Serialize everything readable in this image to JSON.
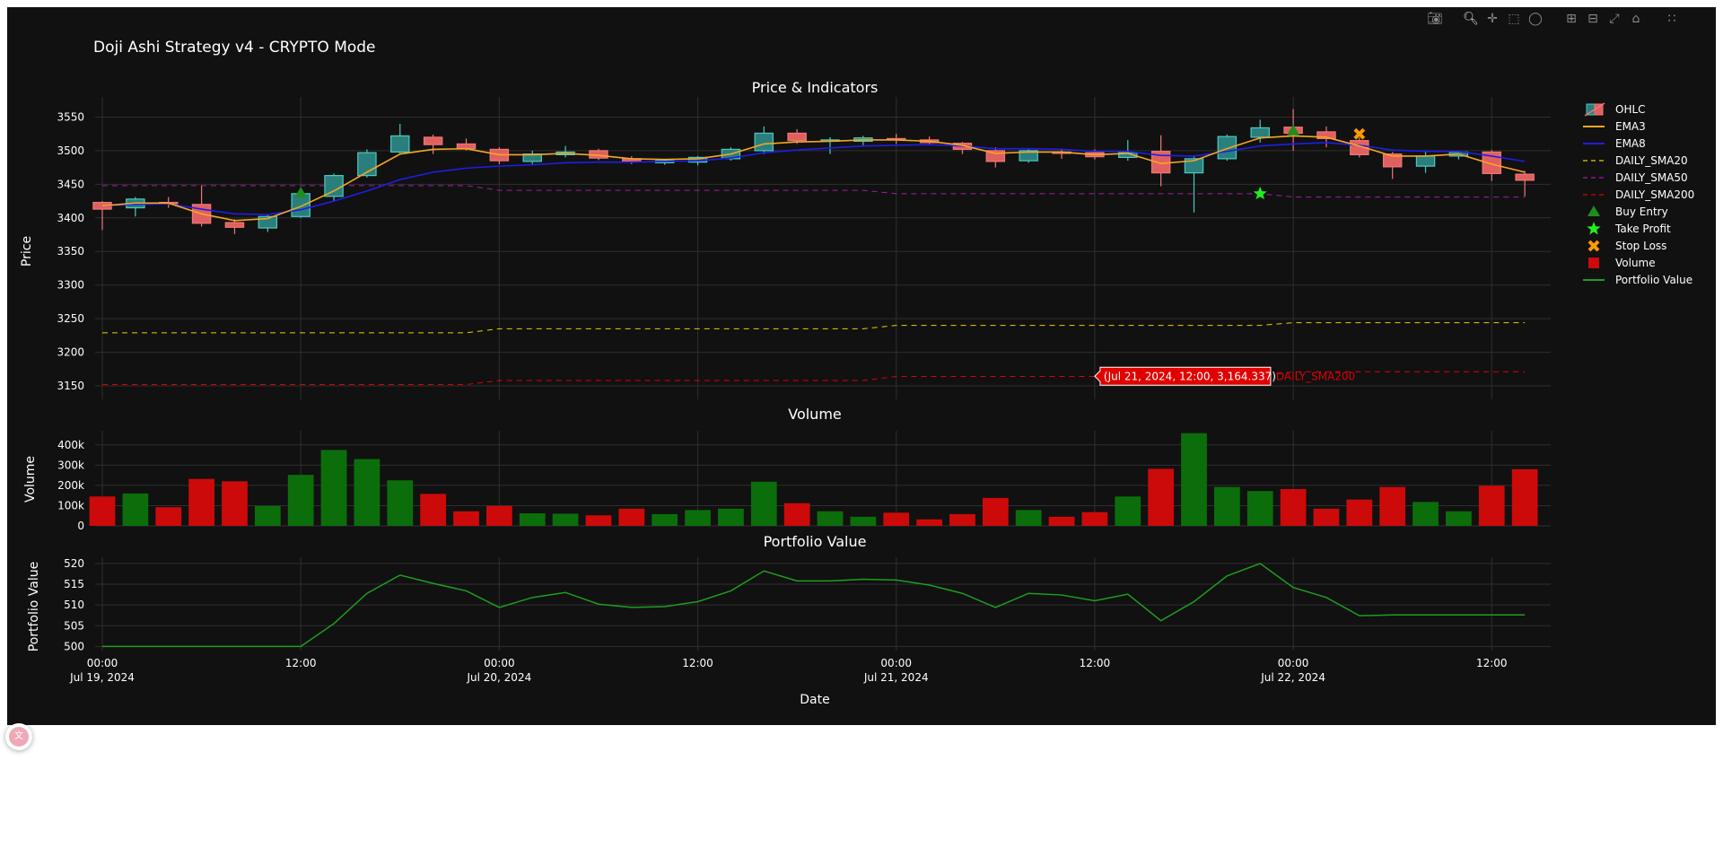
{
  "title": "Doji Ashi Strategy v4 - CRYPTO Mode",
  "modebar": {
    "icons": [
      "camera-icon",
      "zoom-icon",
      "pan-icon",
      "box-select-icon",
      "lasso-icon",
      "zoom-in-icon",
      "zoom-out-icon",
      "autoscale-icon",
      "home-icon",
      "plotly-logo-icon"
    ]
  },
  "colors": {
    "background": "#111111",
    "grid": "#2f2f2f",
    "text": "#ffffff",
    "up_fill": "#2a7f7c",
    "up_line": "#4cc9c0",
    "down_fill": "#e06060",
    "down_line": "#f07777",
    "ema3": "#f5a623",
    "ema8": "#1e1ee8",
    "sma20": "#e8d000",
    "sma50": "#a020a0",
    "sma200": "#e00000",
    "vol_up": "#0b6e0b",
    "vol_down": "#cc0a0a",
    "portfolio": "#1e9e1e",
    "buy": "#1e8e1e",
    "tp": "#22ee22",
    "sl": "#ff9900"
  },
  "chart_data": [
    {
      "type": "candlestick",
      "title": "Price & Indicators",
      "ylabel": "Price",
      "ylim": [
        3130,
        3580
      ],
      "yticks": [
        3150,
        3200,
        3250,
        3300,
        3350,
        3400,
        3450,
        3500,
        3550
      ],
      "xlabel": "Date",
      "x_start": "Jul 19, 2024 00:00",
      "bar_interval_hours": 2,
      "x_tick_labels": [
        {
          "hour": 0,
          "line1": "00:00",
          "line2": "Jul 19, 2024"
        },
        {
          "hour": 12,
          "line1": "12:00",
          "line2": ""
        },
        {
          "hour": 24,
          "line1": "00:00",
          "line2": "Jul 20, 2024"
        },
        {
          "hour": 36,
          "line1": "12:00",
          "line2": ""
        },
        {
          "hour": 48,
          "line1": "00:00",
          "line2": "Jul 21, 2024"
        },
        {
          "hour": 60,
          "line1": "12:00",
          "line2": ""
        },
        {
          "hour": 72,
          "line1": "00:00",
          "line2": "Jul 22, 2024"
        },
        {
          "hour": 84,
          "line1": "12:00",
          "line2": ""
        }
      ],
      "ohlc": [
        [
          3423,
          3425,
          3382,
          3413
        ],
        [
          3415,
          3431,
          3402,
          3428
        ],
        [
          3423,
          3431,
          3415,
          3421
        ],
        [
          3420,
          3448,
          3387,
          3392
        ],
        [
          3393,
          3398,
          3376,
          3386
        ],
        [
          3385,
          3404,
          3379,
          3402
        ],
        [
          3402,
          3440,
          3400,
          3436
        ],
        [
          3432,
          3466,
          3425,
          3463
        ],
        [
          3463,
          3502,
          3460,
          3497
        ],
        [
          3498,
          3540,
          3495,
          3522
        ],
        [
          3520,
          3524,
          3495,
          3509
        ],
        [
          3510,
          3518,
          3500,
          3503
        ],
        [
          3502,
          3505,
          3480,
          3485
        ],
        [
          3484,
          3500,
          3480,
          3495
        ],
        [
          3494,
          3507,
          3490,
          3498
        ],
        [
          3500,
          3503,
          3486,
          3489
        ],
        [
          3488,
          3492,
          3480,
          3484
        ],
        [
          3482,
          3488,
          3479,
          3485
        ],
        [
          3483,
          3492,
          3478,
          3490
        ],
        [
          3488,
          3505,
          3485,
          3502
        ],
        [
          3500,
          3536,
          3495,
          3526
        ],
        [
          3526,
          3532,
          3510,
          3515
        ],
        [
          3515,
          3520,
          3495,
          3516
        ],
        [
          3514,
          3522,
          3508,
          3519
        ],
        [
          3518,
          3525,
          3510,
          3516
        ],
        [
          3516,
          3521,
          3508,
          3512
        ],
        [
          3511,
          3513,
          3495,
          3502
        ],
        [
          3500,
          3505,
          3475,
          3484
        ],
        [
          3485,
          3502,
          3482,
          3500
        ],
        [
          3498,
          3503,
          3488,
          3497
        ],
        [
          3497,
          3502,
          3487,
          3491
        ],
        [
          3490,
          3516,
          3485,
          3497
        ],
        [
          3499,
          3523,
          3447,
          3467
        ],
        [
          3467,
          3493,
          3408,
          3488
        ],
        [
          3488,
          3524,
          3485,
          3521
        ],
        [
          3520,
          3546,
          3512,
          3534
        ],
        [
          3535,
          3562,
          3500,
          3526
        ],
        [
          3528,
          3536,
          3505,
          3518
        ],
        [
          3515,
          3520,
          3490,
          3494
        ],
        [
          3495,
          3498,
          3458,
          3476
        ],
        [
          3477,
          3500,
          3467,
          3492
        ],
        [
          3492,
          3500,
          3487,
          3498
        ],
        [
          3498,
          3501,
          3455,
          3466
        ],
        [
          3465,
          3470,
          3432,
          3456
        ]
      ],
      "ema3": [
        3418,
        3422,
        3422,
        3406,
        3396,
        3399,
        3417,
        3440,
        3468,
        3495,
        3502,
        3503,
        3494,
        3494,
        3496,
        3493,
        3488,
        3487,
        3488,
        3495,
        3510,
        3513,
        3514,
        3516,
        3516,
        3514,
        3508,
        3496,
        3498,
        3498,
        3494,
        3496,
        3481,
        3485,
        3503,
        3519,
        3522,
        3520,
        3507,
        3492,
        3492,
        3495,
        3480,
        3468
      ],
      "ema8": [
        3418,
        3420,
        3421,
        3413,
        3406,
        3405,
        3412,
        3425,
        3440,
        3457,
        3468,
        3474,
        3477,
        3479,
        3482,
        3483,
        3483,
        3484,
        3485,
        3489,
        3497,
        3501,
        3504,
        3507,
        3508,
        3509,
        3507,
        3503,
        3503,
        3502,
        3499,
        3499,
        3493,
        3492,
        3499,
        3507,
        3510,
        3512,
        3508,
        3501,
        3499,
        3499,
        3492,
        3484
      ],
      "daily_sma20": [
        3229,
        3229,
        3229,
        3229,
        3229,
        3229,
        3229,
        3229,
        3229,
        3229,
        3229,
        3229,
        3235,
        3235,
        3235,
        3235,
        3235,
        3235,
        3235,
        3235,
        3235,
        3235,
        3235,
        3235,
        3240,
        3240,
        3240,
        3240,
        3240,
        3240,
        3240,
        3240,
        3240,
        3240,
        3240,
        3240,
        3244,
        3244,
        3244,
        3244,
        3244,
        3244,
        3244,
        3244
      ],
      "daily_sma50": [
        3448,
        3448,
        3448,
        3448,
        3448,
        3448,
        3448,
        3448,
        3448,
        3448,
        3448,
        3448,
        3441,
        3441,
        3441,
        3441,
        3441,
        3441,
        3441,
        3441,
        3441,
        3441,
        3441,
        3441,
        3436,
        3436,
        3436,
        3436,
        3436,
        3436,
        3436,
        3436,
        3436,
        3436,
        3436,
        3436,
        3431,
        3431,
        3431,
        3431,
        3431,
        3431,
        3431,
        3431
      ],
      "daily_sma200": [
        3152,
        3152,
        3152,
        3152,
        3152,
        3152,
        3152,
        3152,
        3152,
        3152,
        3152,
        3152,
        3158,
        3158,
        3158,
        3158,
        3158,
        3158,
        3158,
        3158,
        3158,
        3158,
        3158,
        3158,
        3164,
        3164,
        3164,
        3164,
        3164,
        3164,
        3164,
        3164,
        3164,
        3164,
        3164,
        3164,
        3171,
        3171,
        3171,
        3171,
        3171,
        3171,
        3171,
        3171
      ],
      "buy_entries": [
        {
          "bar": 6,
          "price": 3437
        },
        {
          "bar": 36,
          "price": 3530
        }
      ],
      "take_profit": [
        {
          "bar": 35,
          "price": 3436
        }
      ],
      "stop_loss": [
        {
          "bar": 38,
          "price": 3525
        }
      ],
      "hover": {
        "bar": 30,
        "price": 3164.337,
        "text": "(Jul 21, 2024, 12:00, 3,164.337)",
        "name": "DAILY_SMA200"
      },
      "legend_position": "top-right",
      "legend": [
        "OHLC",
        "EMA3",
        "EMA8",
        "DAILY_SMA20",
        "DAILY_SMA50",
        "DAILY_SMA200",
        "Buy Entry",
        "Take Profit",
        "Stop Loss",
        "Volume",
        "Portfolio Value"
      ]
    },
    {
      "type": "bar",
      "title": "Volume",
      "ylabel": "Volume",
      "ylim": [
        0,
        470000
      ],
      "ytick_values": [
        0,
        100000,
        200000,
        300000,
        400000
      ],
      "ytick_labels": [
        "0",
        "100k",
        "200k",
        "300k",
        "400k"
      ],
      "values": [
        145000,
        160000,
        92000,
        232000,
        220000,
        98000,
        252000,
        375000,
        330000,
        225000,
        158000,
        72000,
        98000,
        62000,
        60000,
        52000,
        85000,
        58000,
        78000,
        85000,
        218000,
        112000,
        72000,
        45000,
        65000,
        32000,
        58000,
        138000,
        78000,
        45000,
        68000,
        145000,
        282000,
        458000,
        192000,
        172000,
        182000,
        85000,
        130000,
        192000,
        118000,
        72000,
        198000,
        280000
      ],
      "directions": [
        "down",
        "up",
        "down",
        "down",
        "down",
        "up",
        "up",
        "up",
        "up",
        "up",
        "down",
        "down",
        "down",
        "up",
        "up",
        "down",
        "down",
        "up",
        "up",
        "up",
        "up",
        "down",
        "up",
        "up",
        "down",
        "down",
        "down",
        "down",
        "up",
        "down",
        "down",
        "up",
        "down",
        "up",
        "up",
        "up",
        "down",
        "down",
        "down",
        "down",
        "up",
        "up",
        "down",
        "down"
      ]
    },
    {
      "type": "line",
      "title": "Portfolio Value",
      "ylabel": "Portfolio Value",
      "ylim": [
        499,
        521.5
      ],
      "yticks": [
        500,
        505,
        510,
        515,
        520
      ],
      "values": [
        500,
        500,
        500,
        500,
        500,
        500,
        500,
        505.5,
        512.8,
        517.2,
        515.2,
        513.4,
        509.4,
        511.8,
        513,
        510.2,
        509.4,
        509.6,
        510.8,
        513.4,
        518.2,
        515.8,
        515.8,
        516.2,
        516,
        514.8,
        512.8,
        509.4,
        512.8,
        512.4,
        511,
        512.6,
        506.2,
        510.8,
        517,
        520,
        514.2,
        511.8,
        507.4,
        507.6,
        507.6,
        507.6,
        507.6,
        507.6
      ]
    }
  ]
}
